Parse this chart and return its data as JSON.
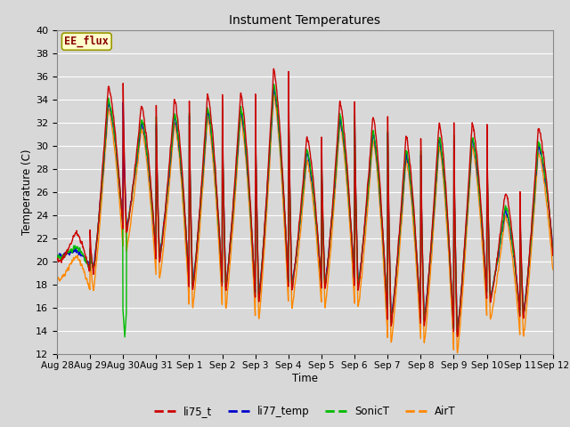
{
  "title": "Instument Temperatures",
  "xlabel": "Time",
  "ylabel": "Temperature (C)",
  "ylim": [
    12,
    40
  ],
  "yticks": [
    12,
    14,
    16,
    18,
    20,
    22,
    24,
    26,
    28,
    30,
    32,
    34,
    36,
    38,
    40
  ],
  "annotation_text": "EE_flux",
  "annotation_bg": "#ffffcc",
  "annotation_border": "#999900",
  "annotation_text_color": "#880000",
  "bg_color": "#d8d8d8",
  "plot_bg_color": "#d8d8d8",
  "grid_color": "#ffffff",
  "series": [
    "li75_t",
    "li77_temp",
    "SonicT",
    "AirT"
  ],
  "colors": [
    "#cc0000",
    "#0000cc",
    "#00bb00",
    "#ff8800"
  ],
  "linewidth": 1.0,
  "x_tick_labels": [
    "Aug 28",
    "Aug 29",
    "Aug 30",
    "Aug 31",
    "Sep 1",
    "Sep 2",
    "Sep 3",
    "Sep 4",
    "Sep 5",
    "Sep 6",
    "Sep 7",
    "Sep 8",
    "Sep 9",
    "Sep 10",
    "Sep 11",
    "Sep 12"
  ],
  "figsize": [
    6.4,
    4.8
  ],
  "dpi": 100
}
